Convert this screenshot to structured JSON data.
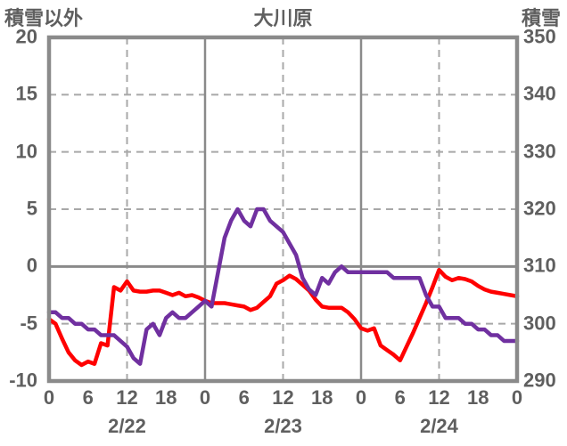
{
  "chart_data": {
    "type": "line",
    "title": "大川原",
    "left_axis": {
      "label": "積雪以外",
      "min": -10,
      "max": 20,
      "ticks": [
        20,
        15,
        10,
        5,
        0,
        -5,
        -10
      ],
      "dashed_gridlines": [
        15,
        10,
        5,
        -5
      ],
      "solid_line_at": 0
    },
    "right_axis": {
      "label": "積雪",
      "min": 290,
      "max": 350,
      "ticks": [
        350,
        340,
        330,
        320,
        310,
        300,
        290
      ]
    },
    "x_axis": {
      "hours_span": 72,
      "tick_interval_hours": 6,
      "hour_tick_labels": [
        "0",
        "6",
        "12",
        "18",
        "0",
        "6",
        "12",
        "18",
        "0",
        "6",
        "12",
        "18",
        "0"
      ],
      "day_labels": [
        "2/22",
        "2/23",
        "2/24"
      ],
      "dashed_gridlines_hours": [
        12,
        36,
        60
      ],
      "solid_gridlines_hours": [
        24,
        48
      ]
    },
    "series": [
      {
        "name": "red-line (積雪以外, left axis)",
        "color": "#FF0000",
        "axis": "left",
        "interval_hours": 1,
        "values": [
          -4.6,
          -5.0,
          -6.3,
          -7.5,
          -8.2,
          -8.6,
          -8.3,
          -8.5,
          -6.7,
          -6.9,
          -1.8,
          -2.1,
          -1.3,
          -2.1,
          -2.2,
          -2.2,
          -2.1,
          -2.1,
          -2.3,
          -2.5,
          -2.3,
          -2.6,
          -2.5,
          -2.7,
          -3.0,
          -3.2,
          -3.2,
          -3.2,
          -3.3,
          -3.4,
          -3.5,
          -3.8,
          -3.6,
          -3.1,
          -2.6,
          -1.5,
          -1.2,
          -0.8,
          -1.1,
          -1.6,
          -2.1,
          -2.9,
          -3.5,
          -3.6,
          -3.6,
          -3.6,
          -4.0,
          -4.6,
          -5.4,
          -5.6,
          -5.4,
          -6.9,
          -7.3,
          -7.7,
          -8.2,
          -7.0,
          -5.8,
          -4.5,
          -3.2,
          -1.8,
          -0.3,
          -0.9,
          -1.2,
          -1.0,
          -1.1,
          -1.3,
          -1.7,
          -2.0,
          -2.2,
          -2.3,
          -2.4,
          -2.5,
          -2.6
        ]
      },
      {
        "name": "purple-line (積雪, right axis)",
        "color": "#7030A0",
        "axis": "right",
        "interval_hours": 1,
        "values": [
          302,
          302,
          301,
          301,
          300,
          300,
          299,
          299,
          298,
          298,
          298,
          297,
          296,
          294,
          293,
          299,
          300,
          298,
          301,
          302,
          301,
          301,
          302,
          303,
          304,
          303,
          309,
          315,
          318,
          320,
          318,
          317,
          320,
          320,
          318,
          317,
          316,
          314,
          312,
          308,
          306,
          305,
          308,
          307,
          309,
          310,
          309,
          309,
          309,
          309,
          309,
          309,
          309,
          308,
          308,
          308,
          308,
          308,
          305,
          303,
          303,
          301,
          301,
          301,
          300,
          300,
          299,
          299,
          298,
          298,
          297,
          297,
          297
        ]
      }
    ],
    "colors": {
      "background": "#ffffff",
      "text": "#5f5f5f",
      "frame": "#8a8a8a",
      "grid_dashed": "#a8a8a8",
      "red_series": "#FF0000",
      "purple_series": "#7030A0"
    }
  }
}
